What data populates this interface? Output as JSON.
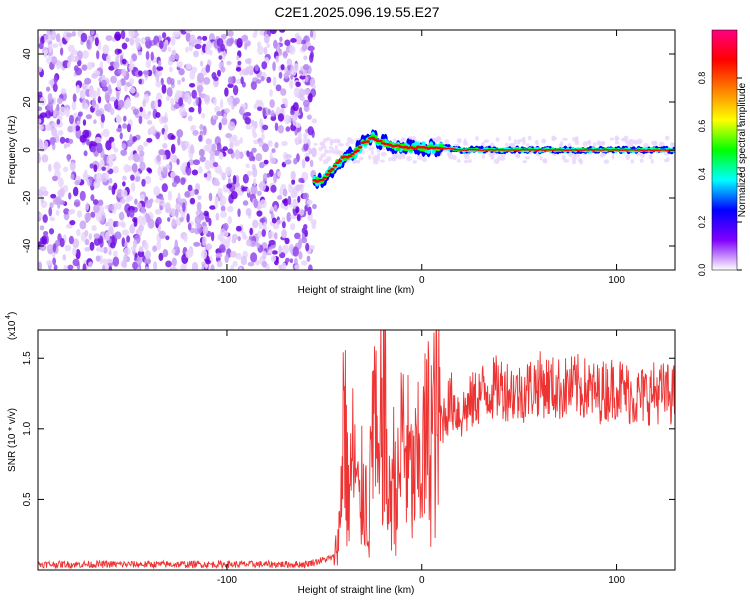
{
  "title": "C2E1.2025.096.19.55.E27",
  "chart_data": [
    {
      "type": "heatmap",
      "xlabel": "Height of straight line (km)",
      "ylabel": "Frequency (Hz)",
      "xlim": [
        -197,
        130
      ],
      "ylim": [
        -50,
        50
      ],
      "x_ticks": [
        -100,
        0,
        100
      ],
      "y_ticks": [
        -40,
        -20,
        0,
        20,
        40
      ],
      "colorbar": {
        "label": "Normalized spectral amplitude",
        "range": [
          0,
          1
        ],
        "ticks": [
          "0.0",
          "0.2",
          "0.4",
          "0.6",
          "0.8"
        ],
        "colors": [
          "#ffffff",
          "#8000ff",
          "#0000ff",
          "#00ffff",
          "#00ff00",
          "#ffff00",
          "#ff8000",
          "#ff0000",
          "#ff0080"
        ]
      },
      "noise_region_x": [
        -197,
        -55
      ],
      "signal_track": {
        "x": [
          -55,
          -50,
          -45,
          -40,
          -35,
          -30,
          -25,
          -20,
          -15,
          -10,
          -5,
          0,
          10,
          20,
          40,
          60,
          80,
          100,
          130
        ],
        "y": [
          -13,
          -12,
          -7,
          -3,
          -2,
          3,
          5,
          3,
          2,
          1,
          1,
          1,
          1,
          0,
          0,
          0,
          0,
          0,
          0
        ]
      }
    },
    {
      "type": "line",
      "xlabel": "Height of straight line (km)",
      "ylabel": "SNR (10 * v/v)",
      "y_multiplier": "(x10",
      "y_multiplier_exp": "4",
      "xlim": [
        -197,
        130
      ],
      "ylim": [
        0,
        17000
      ],
      "x_ticks": [
        -100,
        0,
        100
      ],
      "y_ticks": [
        "0.5",
        "1.0",
        "1.5"
      ],
      "y_tick_values": [
        5000,
        10000,
        15000
      ],
      "color": "#ee3333",
      "series": [
        {
          "x": [
            -197,
            -150,
            -100,
            -60,
            -45,
            -42,
            -40,
            -38,
            -35,
            -32,
            -30,
            -27,
            -25,
            -22,
            -20,
            -17,
            -15,
            -12,
            -10,
            -5,
            0,
            5,
            10,
            15,
            20,
            30,
            40,
            50,
            60,
            70,
            80,
            90,
            100,
            110,
            120,
            130
          ],
          "y": [
            400,
            400,
            400,
            400,
            900,
            3000,
            13000,
            5000,
            8000,
            4000,
            6500,
            3000,
            12500,
            5000,
            15000,
            4000,
            7000,
            5500,
            10000,
            6000,
            8000,
            10000,
            10500,
            12000,
            11000,
            12500,
            13000,
            12500,
            13200,
            12800,
            13000,
            12500,
            13000,
            12200,
            12600,
            12400
          ]
        }
      ]
    }
  ]
}
